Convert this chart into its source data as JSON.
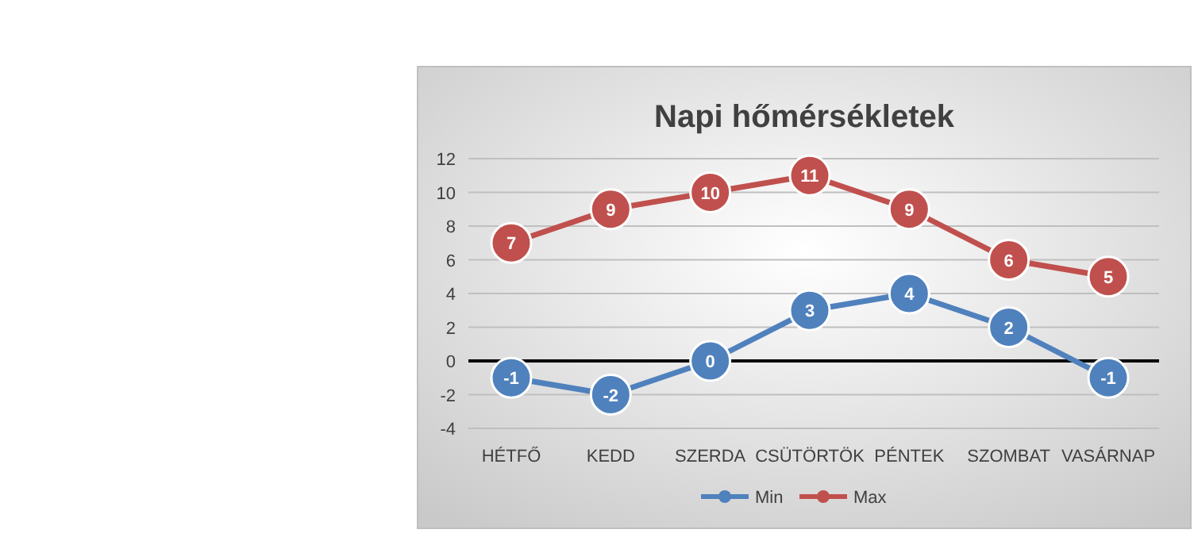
{
  "chart_data": {
    "type": "line",
    "title": "Napi hőmérsékletek",
    "categories": [
      "HÉTFŐ",
      "KEDD",
      "SZERDA",
      "CSÜTÖRTÖK",
      "PÉNTEK",
      "SZOMBAT",
      "VASÁRNAP"
    ],
    "series": [
      {
        "name": "Min",
        "color": "#4f81bd",
        "values": [
          -1,
          -2,
          0,
          3,
          4,
          2,
          -1
        ]
      },
      {
        "name": "Max",
        "color": "#c0504d",
        "values": [
          7,
          9,
          10,
          11,
          9,
          6,
          5
        ]
      }
    ],
    "ylim": [
      -4,
      12
    ],
    "yticks": [
      -4,
      -2,
      0,
      2,
      4,
      6,
      8,
      10,
      12
    ],
    "grid": "y",
    "legend": "bottom",
    "marker": "circle",
    "line_style": "solid",
    "data_labels": true,
    "ref_lines": [
      {
        "axis": "y",
        "value": 0,
        "color": "#000000"
      }
    ]
  }
}
